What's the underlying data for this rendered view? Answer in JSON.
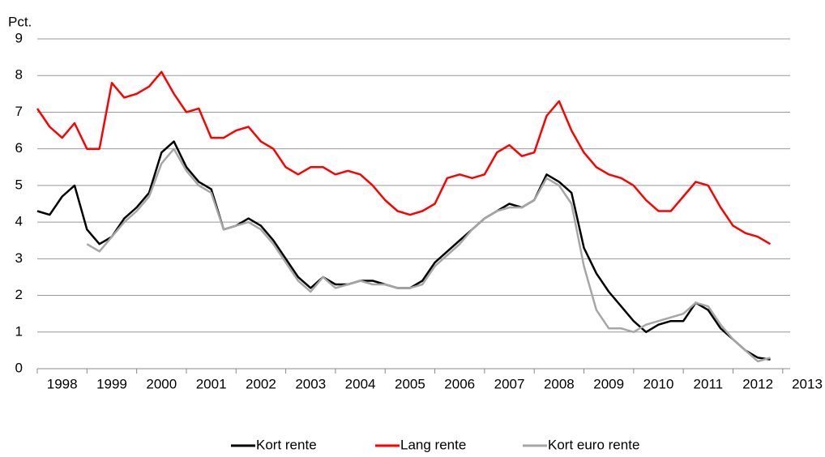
{
  "chart_data": {
    "type": "line",
    "ylabel": "Pct.",
    "x": [
      1998,
      1998.25,
      1998.5,
      1998.75,
      1999,
      1999.25,
      1999.5,
      1999.75,
      2000,
      2000.25,
      2000.5,
      2000.75,
      2001,
      2001.25,
      2001.5,
      2001.75,
      2002,
      2002.25,
      2002.5,
      2002.75,
      2003,
      2003.25,
      2003.5,
      2003.75,
      2004,
      2004.25,
      2004.5,
      2004.75,
      2005,
      2005.25,
      2005.5,
      2005.75,
      2006,
      2006.25,
      2006.5,
      2006.75,
      2007,
      2007.25,
      2007.5,
      2007.75,
      2008,
      2008.25,
      2008.5,
      2008.75,
      2009,
      2009.25,
      2009.5,
      2009.75,
      2010,
      2010.25,
      2010.5,
      2010.75,
      2011,
      2011.25,
      2011.5,
      2011.75,
      2012,
      2012.25,
      2012.5,
      2012.75
    ],
    "series": [
      {
        "name": "Kort rente",
        "color": "#000000",
        "values": [
          4.3,
          4.2,
          4.7,
          5.0,
          3.8,
          3.4,
          3.6,
          4.1,
          4.4,
          4.8,
          5.9,
          6.2,
          5.5,
          5.1,
          4.9,
          3.8,
          3.9,
          4.1,
          3.9,
          3.5,
          3.0,
          2.5,
          2.2,
          2.5,
          2.3,
          2.3,
          2.4,
          2.4,
          2.3,
          2.2,
          2.2,
          2.4,
          2.9,
          3.2,
          3.5,
          3.8,
          4.1,
          4.3,
          4.5,
          4.4,
          4.6,
          5.3,
          5.1,
          4.8,
          3.3,
          2.6,
          2.1,
          1.7,
          1.3,
          1.0,
          1.2,
          1.3,
          1.3,
          1.8,
          1.6,
          1.1,
          0.8,
          0.5,
          0.3,
          0.25
        ]
      },
      {
        "name": "Lang rente",
        "color": "#ff0000",
        "values": [
          7.1,
          6.6,
          6.3,
          6.7,
          6.0,
          6.0,
          7.8,
          7.4,
          7.5,
          7.7,
          8.1,
          7.5,
          7.0,
          7.1,
          6.3,
          6.3,
          6.5,
          6.6,
          6.2,
          6.0,
          5.5,
          5.3,
          5.5,
          5.5,
          5.3,
          5.4,
          5.3,
          5.0,
          4.6,
          4.3,
          4.2,
          4.3,
          4.5,
          5.2,
          5.3,
          5.2,
          5.3,
          5.9,
          6.1,
          5.8,
          5.9,
          6.9,
          7.3,
          6.5,
          5.9,
          5.5,
          5.3,
          5.2,
          5.0,
          4.6,
          4.3,
          4.3,
          4.7,
          5.1,
          5.0,
          4.4,
          3.9,
          3.7,
          3.6,
          3.4
        ]
      },
      {
        "name": "Kort euro rente",
        "color": "#a6a6a6",
        "values": [
          null,
          null,
          null,
          null,
          3.4,
          3.2,
          3.6,
          4.0,
          4.3,
          4.7,
          5.6,
          6.0,
          5.4,
          5.0,
          4.8,
          3.8,
          3.9,
          4.0,
          3.8,
          3.4,
          2.9,
          2.4,
          2.1,
          2.5,
          2.2,
          2.3,
          2.4,
          2.3,
          2.3,
          2.2,
          2.2,
          2.3,
          2.8,
          3.1,
          3.4,
          3.8,
          4.1,
          4.3,
          4.4,
          4.4,
          4.6,
          5.2,
          5.0,
          4.5,
          2.8,
          1.6,
          1.1,
          1.1,
          1.0,
          1.2,
          1.3,
          1.4,
          1.5,
          1.8,
          1.7,
          1.2,
          0.8,
          0.5,
          0.2,
          0.3
        ]
      }
    ],
    "xlim": [
      1998,
      2013.15
    ],
    "xticks": [
      1998,
      1999,
      2000,
      2001,
      2002,
      2003,
      2004,
      2005,
      2006,
      2007,
      2008,
      2009,
      2010,
      2011,
      2012,
      2013
    ],
    "ylim": [
      0,
      9
    ],
    "yticks": [
      0,
      1,
      2,
      3,
      4,
      5,
      6,
      7,
      8,
      9
    ],
    "grid": true,
    "legend": "bottom"
  }
}
